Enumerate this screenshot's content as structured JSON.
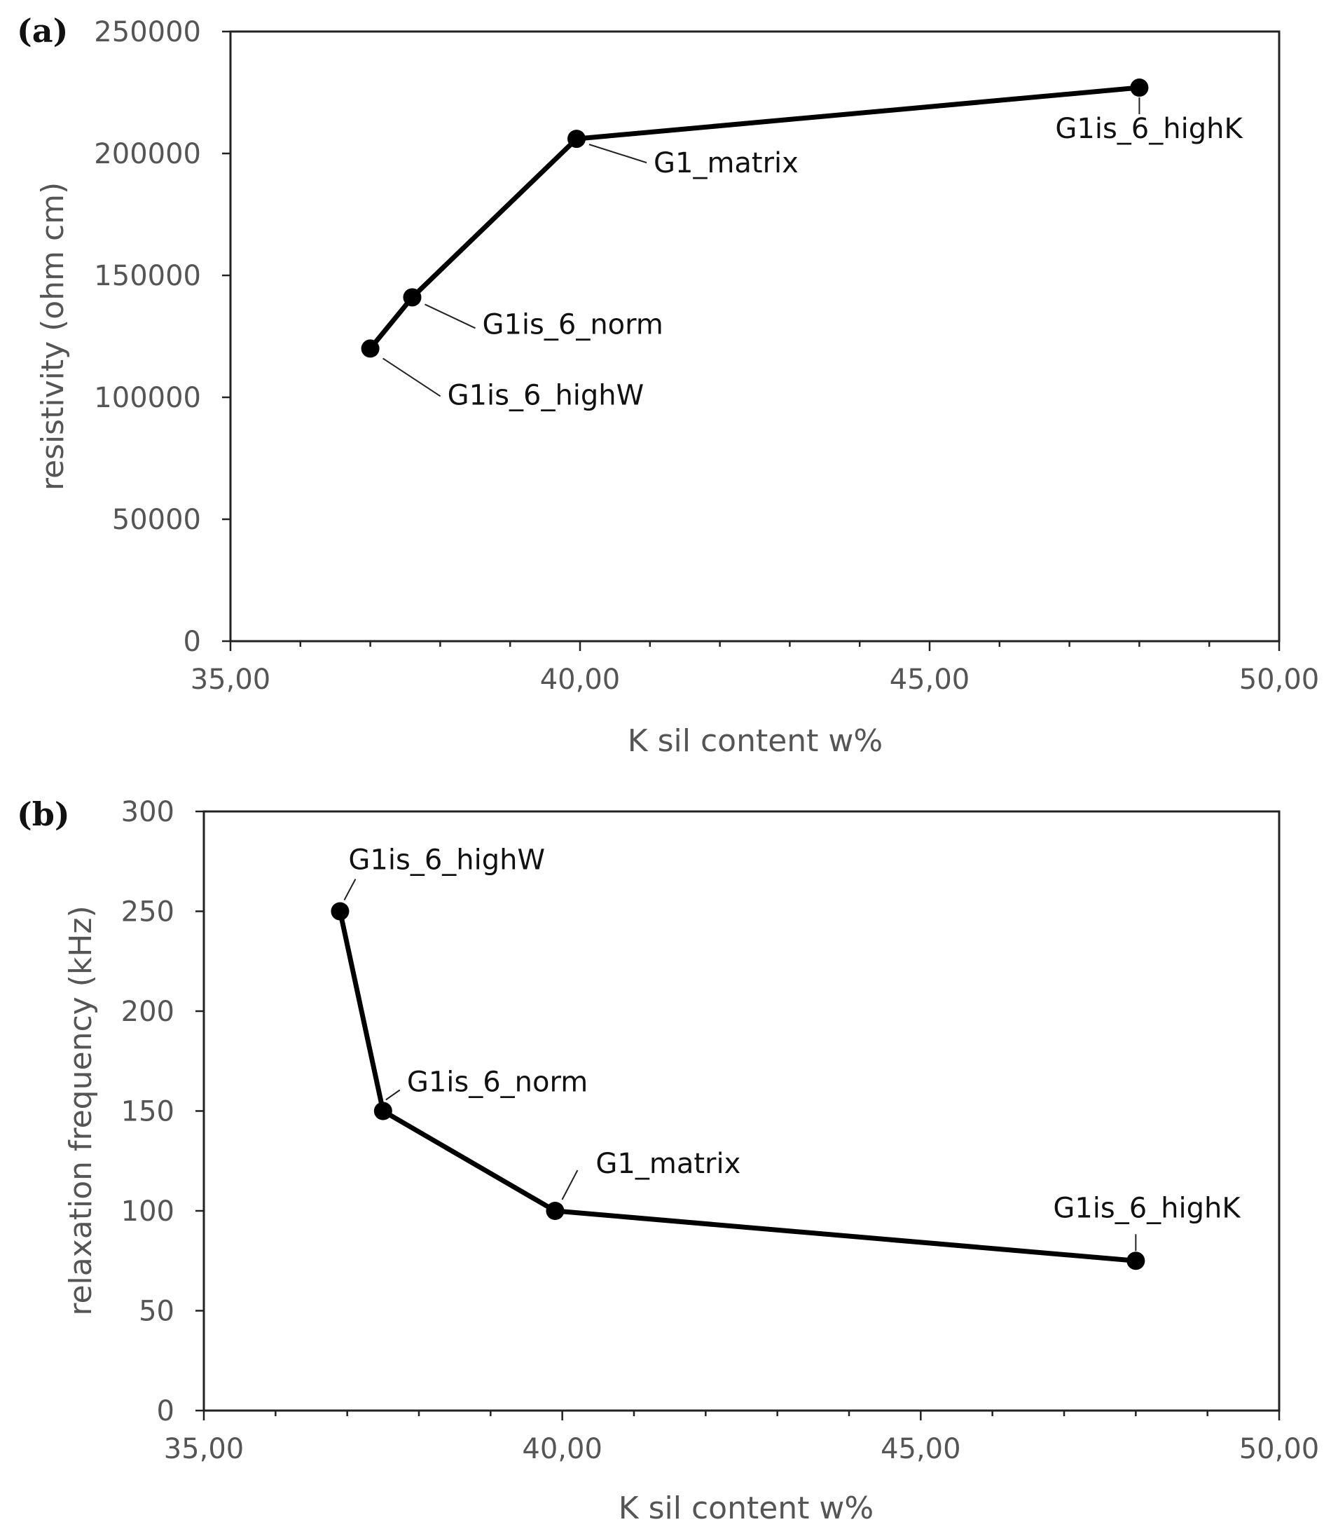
{
  "chart_data": [
    {
      "panel": "(a)",
      "type": "line",
      "xlabel": "K sil content w%",
      "ylabel": "resistivity (ohm cm)",
      "xlim": [
        35,
        50
      ],
      "ylim": [
        0,
        250000
      ],
      "x_ticks": [
        "35,00",
        "40,00",
        "45,00",
        "50,00"
      ],
      "y_ticks": [
        "0",
        "50000",
        "100000",
        "150000",
        "200000",
        "250000"
      ],
      "grid": false,
      "series": [
        {
          "points": [
            {
              "x": 37.0,
              "y": 120000,
              "label": "G1is_6_highW"
            },
            {
              "x": 37.6,
              "y": 141000,
              "label": "G1is_6_norm"
            },
            {
              "x": 39.95,
              "y": 206000,
              "label": "G1_matrix"
            },
            {
              "x": 48.0,
              "y": 227000,
              "label": "G1is_6_highK"
            }
          ]
        }
      ]
    },
    {
      "panel": "(b)",
      "type": "line",
      "xlabel": "K sil content w%",
      "ylabel": "relaxation frequency (kHz)",
      "xlim": [
        35,
        50
      ],
      "ylim": [
        0,
        300
      ],
      "x_ticks": [
        "35,00",
        "40,00",
        "45,00",
        "50,00"
      ],
      "y_ticks": [
        "0",
        "50",
        "100",
        "150",
        "200",
        "250",
        "300"
      ],
      "grid": false,
      "series": [
        {
          "points": [
            {
              "x": 36.9,
              "y": 250,
              "label": "G1is_6_highW"
            },
            {
              "x": 37.5,
              "y": 150,
              "label": "G1is_6_norm"
            },
            {
              "x": 39.9,
              "y": 100,
              "label": "G1_matrix"
            },
            {
              "x": 48.0,
              "y": 75,
              "label": "G1is_6_highK"
            }
          ]
        }
      ]
    }
  ]
}
